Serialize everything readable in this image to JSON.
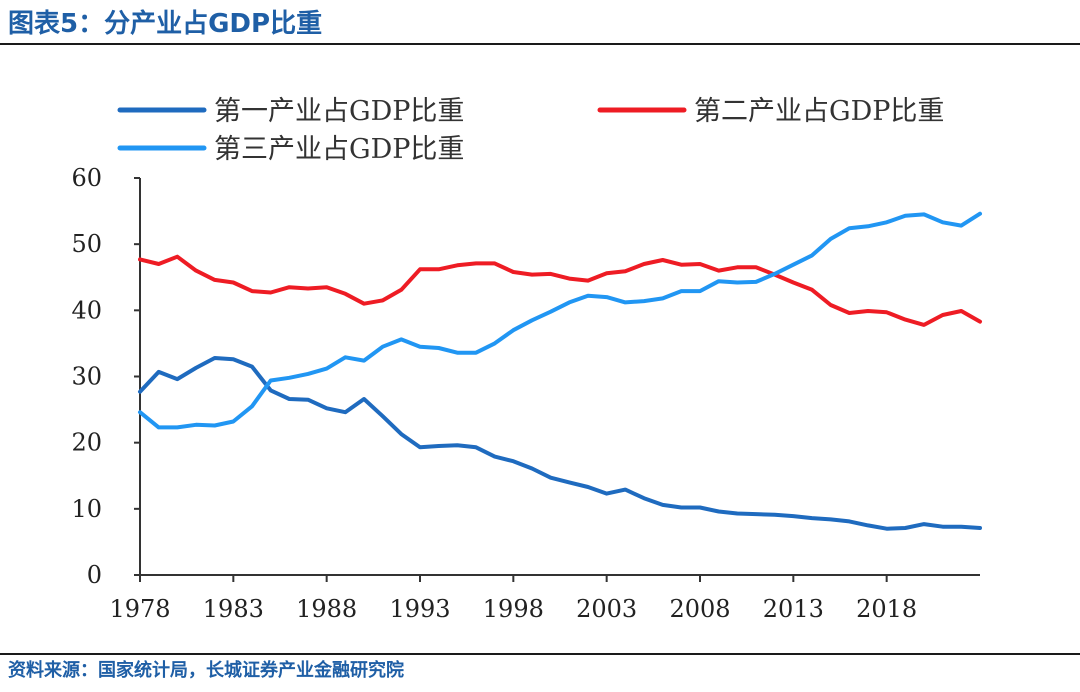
{
  "figure": {
    "title": "图表5：分产业占GDP比重",
    "source": "资料来源：国家统计局，长城证券产业金融研究院"
  },
  "chart_data": {
    "type": "line",
    "x_ticks": [
      1978,
      1983,
      1988,
      1993,
      1998,
      2003,
      2008,
      2013,
      2018
    ],
    "y_ticks": [
      0,
      10,
      20,
      30,
      40,
      50,
      60
    ],
    "xlim": [
      1978,
      2023
    ],
    "ylim": [
      0,
      60
    ],
    "grid": false,
    "legend": "top",
    "series": [
      {
        "name": "第一产业占GDP比重",
        "color": "#1f6bbf",
        "x": [
          1978,
          1979,
          1980,
          1981,
          1982,
          1983,
          1984,
          1985,
          1986,
          1987,
          1988,
          1989,
          1990,
          1991,
          1992,
          1993,
          1994,
          1995,
          1996,
          1997,
          1998,
          1999,
          2000,
          2001,
          2002,
          2003,
          2004,
          2005,
          2006,
          2007,
          2008,
          2009,
          2010,
          2011,
          2012,
          2013,
          2014,
          2015,
          2016,
          2017,
          2018,
          2019,
          2020,
          2021,
          2022,
          2023
        ],
        "values": [
          27.7,
          30.7,
          29.6,
          31.3,
          32.8,
          32.6,
          31.5,
          27.9,
          26.6,
          26.5,
          25.2,
          24.6,
          26.6,
          24.0,
          21.3,
          19.3,
          19.5,
          19.6,
          19.3,
          17.9,
          17.2,
          16.1,
          14.7,
          14.0,
          13.3,
          12.3,
          12.9,
          11.6,
          10.6,
          10.2,
          10.2,
          9.6,
          9.3,
          9.2,
          9.1,
          8.9,
          8.6,
          8.4,
          8.1,
          7.5,
          7.0,
          7.1,
          7.7,
          7.3,
          7.3,
          7.1
        ]
      },
      {
        "name": "第二产业占GDP比重",
        "color": "#ee1c24",
        "x": [
          1978,
          1979,
          1980,
          1981,
          1982,
          1983,
          1984,
          1985,
          1986,
          1987,
          1988,
          1989,
          1990,
          1991,
          1992,
          1993,
          1994,
          1995,
          1996,
          1997,
          1998,
          1999,
          2000,
          2001,
          2002,
          2003,
          2004,
          2005,
          2006,
          2007,
          2008,
          2009,
          2010,
          2011,
          2012,
          2013,
          2014,
          2015,
          2016,
          2017,
          2018,
          2019,
          2020,
          2021,
          2022,
          2023
        ],
        "values": [
          47.7,
          47.0,
          48.1,
          46.0,
          44.6,
          44.2,
          42.9,
          42.7,
          43.5,
          43.3,
          43.5,
          42.5,
          41.0,
          41.5,
          43.1,
          46.2,
          46.2,
          46.8,
          47.1,
          47.1,
          45.8,
          45.4,
          45.5,
          44.8,
          44.5,
          45.6,
          45.9,
          47.0,
          47.6,
          46.9,
          47.0,
          46.0,
          46.5,
          46.5,
          45.4,
          44.2,
          43.1,
          40.8,
          39.6,
          39.9,
          39.7,
          38.6,
          37.8,
          39.3,
          39.9,
          38.3
        ]
      },
      {
        "name": "第三产业占GDP比重",
        "color": "#2196f3",
        "x": [
          1978,
          1979,
          1980,
          1981,
          1982,
          1983,
          1984,
          1985,
          1986,
          1987,
          1988,
          1989,
          1990,
          1991,
          1992,
          1993,
          1994,
          1995,
          1996,
          1997,
          1998,
          1999,
          2000,
          2001,
          2002,
          2003,
          2004,
          2005,
          2006,
          2007,
          2008,
          2009,
          2010,
          2011,
          2012,
          2013,
          2014,
          2015,
          2016,
          2017,
          2018,
          2019,
          2020,
          2021,
          2022,
          2023
        ],
        "values": [
          24.6,
          22.3,
          22.3,
          22.7,
          22.6,
          23.2,
          25.5,
          29.4,
          29.8,
          30.4,
          31.2,
          32.9,
          32.4,
          34.5,
          35.6,
          34.5,
          34.3,
          33.6,
          33.6,
          35.0,
          37.0,
          38.5,
          39.8,
          41.2,
          42.2,
          42.0,
          41.2,
          41.4,
          41.8,
          42.9,
          42.9,
          44.4,
          44.2,
          44.3,
          45.5,
          46.9,
          48.3,
          50.8,
          52.4,
          52.7,
          53.3,
          54.3,
          54.5,
          53.3,
          52.8,
          54.6
        ]
      }
    ]
  }
}
